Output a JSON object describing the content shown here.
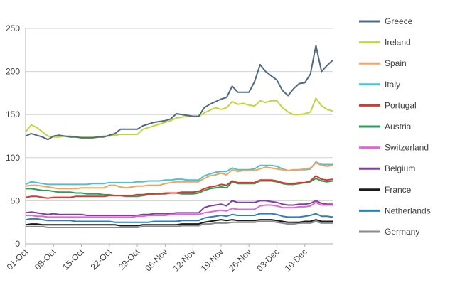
{
  "chart_data": {
    "type": "line",
    "title": "",
    "xlabel": "",
    "ylabel": "",
    "ylim": [
      0,
      250
    ],
    "yticks": [
      0,
      50,
      100,
      150,
      200,
      250
    ],
    "grid": true,
    "legend_position": "right",
    "x_tick_labels": [
      "01-Oct",
      "08-Oct",
      "15-Oct",
      "22-Oct",
      "29-Oct",
      "05-Nov",
      "12-Nov",
      "19-Nov",
      "26-Nov",
      "03-Dec",
      "10-Dec"
    ],
    "points_per_week": 5,
    "series": [
      {
        "name": "Greece",
        "color": "#4f6a85",
        "values": [
          125,
          128,
          126,
          124,
          121,
          125,
          126,
          125,
          124,
          124,
          123,
          123,
          123,
          124,
          124,
          126,
          128,
          133,
          133,
          133,
          133,
          137,
          139,
          141,
          142,
          143,
          145,
          151,
          150,
          149,
          148,
          148,
          158,
          162,
          165,
          168,
          170,
          183,
          176,
          176,
          176,
          188,
          208,
          200,
          195,
          190,
          178,
          172,
          180,
          186,
          187,
          197,
          230,
          200,
          207,
          213
        ]
      },
      {
        "name": "Ireland",
        "color": "#c2d63c",
        "values": [
          130,
          138,
          135,
          130,
          125,
          124,
          124,
          125,
          125,
          124,
          124,
          124,
          124,
          124,
          125,
          125,
          126,
          127,
          127,
          127,
          127,
          133,
          135,
          137,
          139,
          141,
          143,
          146,
          147,
          148,
          148,
          148,
          152,
          155,
          158,
          156,
          158,
          165,
          162,
          163,
          161,
          160,
          166,
          164,
          166,
          166,
          158,
          153,
          150,
          150,
          151,
          153,
          169,
          160,
          156,
          154
        ]
      },
      {
        "name": "Spain",
        "color": "#f5a25c",
        "values": [
          67,
          68,
          68,
          67,
          66,
          65,
          64,
          64,
          64,
          64,
          65,
          65,
          65,
          65,
          65,
          68,
          68,
          66,
          65,
          66,
          67,
          67,
          68,
          68,
          68,
          70,
          71,
          72,
          72,
          72,
          72,
          72,
          76,
          79,
          80,
          82,
          80,
          86,
          84,
          85,
          85,
          85,
          87,
          89,
          88,
          87,
          86,
          85,
          86,
          86,
          87,
          88,
          94,
          91,
          90,
          91
        ]
      },
      {
        "name": "Italy",
        "color": "#4bc1d6",
        "values": [
          69,
          72,
          71,
          70,
          69,
          69,
          69,
          69,
          69,
          69,
          69,
          69,
          70,
          70,
          70,
          71,
          71,
          71,
          71,
          71,
          72,
          72,
          73,
          73,
          73,
          74,
          74,
          75,
          75,
          74,
          74,
          74,
          79,
          81,
          83,
          84,
          84,
          88,
          86,
          86,
          86,
          87,
          91,
          91,
          91,
          90,
          87,
          85,
          85,
          86,
          86,
          87,
          95,
          92,
          92,
          92
        ]
      },
      {
        "name": "Portugal",
        "color": "#d9392b",
        "values": [
          54,
          55,
          55,
          54,
          53,
          54,
          54,
          54,
          54,
          55,
          55,
          55,
          55,
          55,
          55,
          56,
          56,
          56,
          56,
          56,
          57,
          57,
          58,
          58,
          58,
          59,
          59,
          59,
          60,
          60,
          60,
          61,
          64,
          66,
          67,
          69,
          68,
          73,
          71,
          71,
          71,
          71,
          74,
          74,
          74,
          73,
          71,
          70,
          70,
          71,
          71,
          73,
          79,
          75,
          74,
          75
        ]
      },
      {
        "name": "Austria",
        "color": "#2e9c5c",
        "values": [
          64,
          64,
          63,
          62,
          62,
          61,
          60,
          60,
          60,
          59,
          59,
          58,
          58,
          58,
          57,
          57,
          56,
          56,
          55,
          55,
          55,
          56,
          57,
          58,
          58,
          58,
          59,
          59,
          58,
          58,
          58,
          59,
          62,
          64,
          65,
          66,
          65,
          72,
          70,
          70,
          70,
          70,
          73,
          73,
          73,
          72,
          70,
          69,
          69,
          70,
          71,
          72,
          76,
          73,
          72,
          73
        ]
      },
      {
        "name": "Switzerland",
        "color": "#e565d6",
        "values": [
          33,
          33,
          32,
          32,
          31,
          31,
          31,
          31,
          31,
          31,
          31,
          31,
          31,
          31,
          31,
          31,
          31,
          31,
          31,
          31,
          32,
          32,
          33,
          33,
          33,
          33,
          34,
          34,
          34,
          34,
          34,
          34,
          36,
          37,
          38,
          39,
          38,
          41,
          40,
          40,
          40,
          40,
          44,
          45,
          45,
          44,
          42,
          42,
          42,
          43,
          43,
          44,
          48,
          45,
          45,
          45
        ]
      },
      {
        "name": "Belgium",
        "color": "#8040a0",
        "values": [
          36,
          37,
          36,
          35,
          34,
          35,
          34,
          34,
          34,
          34,
          34,
          33,
          33,
          33,
          33,
          33,
          33,
          33,
          33,
          33,
          33,
          34,
          34,
          35,
          35,
          35,
          35,
          36,
          36,
          36,
          36,
          36,
          42,
          44,
          45,
          46,
          44,
          50,
          48,
          48,
          48,
          48,
          50,
          50,
          49,
          48,
          46,
          45,
          45,
          46,
          46,
          47,
          50,
          47,
          46,
          46
        ]
      },
      {
        "name": "France",
        "color": "#1a1a1a",
        "values": [
          22,
          23,
          23,
          22,
          22,
          22,
          22,
          22,
          22,
          22,
          22,
          22,
          22,
          22,
          22,
          22,
          22,
          21,
          21,
          21,
          21,
          22,
          22,
          22,
          22,
          22,
          22,
          22,
          23,
          23,
          23,
          23,
          25,
          26,
          27,
          28,
          27,
          28,
          27,
          27,
          27,
          27,
          28,
          28,
          28,
          27,
          26,
          25,
          25,
          25,
          26,
          26,
          28,
          26,
          26,
          26
        ]
      },
      {
        "name": "Netherlands",
        "color": "#2e7fb8",
        "values": [
          28,
          29,
          29,
          28,
          27,
          27,
          27,
          27,
          27,
          26,
          26,
          26,
          26,
          26,
          26,
          26,
          25,
          25,
          25,
          25,
          25,
          25,
          25,
          26,
          26,
          26,
          26,
          26,
          27,
          27,
          27,
          27,
          30,
          31,
          32,
          33,
          32,
          34,
          33,
          33,
          33,
          33,
          35,
          35,
          35,
          34,
          32,
          31,
          31,
          31,
          32,
          33,
          35,
          32,
          32,
          31
        ]
      },
      {
        "name": "Germany",
        "color": "#8a8a8a",
        "values": [
          20,
          20,
          20,
          20,
          19,
          19,
          19,
          19,
          19,
          19,
          19,
          19,
          19,
          19,
          19,
          19,
          19,
          19,
          19,
          19,
          19,
          20,
          20,
          20,
          20,
          20,
          20,
          20,
          21,
          21,
          21,
          21,
          23,
          23,
          24,
          24,
          24,
          25,
          25,
          25,
          25,
          25,
          26,
          26,
          26,
          25,
          24,
          23,
          23,
          24,
          24,
          24,
          26,
          24,
          24,
          24
        ]
      }
    ]
  }
}
